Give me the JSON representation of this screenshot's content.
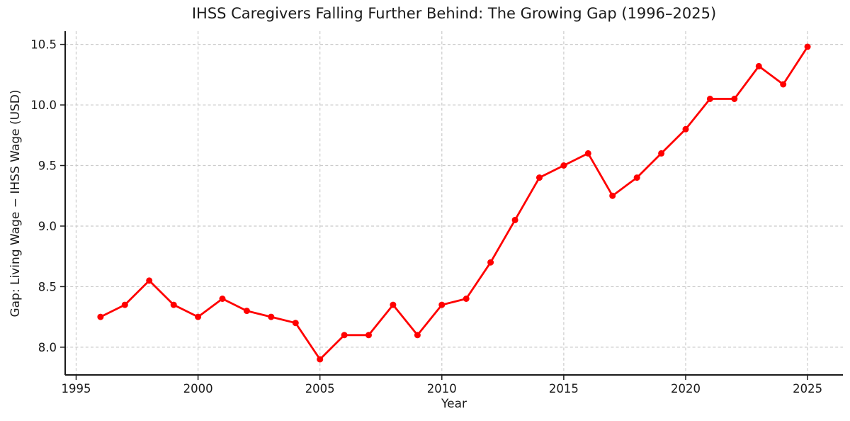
{
  "page": {
    "background_color": "#ffffff",
    "text_color": "#1a1a1a"
  },
  "chart_data": {
    "type": "line",
    "title": "IHSS Caregivers Falling Further Behind: The Growing Gap (1996–2025)",
    "xlabel": "Year",
    "ylabel": "Gap: Living Wage − IHSS Wage (USD)",
    "x": [
      1996,
      1997,
      1998,
      1999,
      2000,
      2001,
      2002,
      2003,
      2004,
      2005,
      2006,
      2007,
      2008,
      2009,
      2010,
      2011,
      2012,
      2013,
      2014,
      2015,
      2016,
      2017,
      2018,
      2019,
      2020,
      2021,
      2022,
      2023,
      2024,
      2025
    ],
    "series": [
      {
        "name": "Gap: Living Wage minus IHSS Wage",
        "color": "#ff0000",
        "values": [
          8.25,
          8.35,
          8.55,
          8.35,
          8.25,
          8.4,
          8.3,
          8.25,
          8.2,
          7.9,
          8.1,
          8.1,
          8.35,
          8.1,
          8.35,
          8.4,
          8.7,
          9.05,
          9.4,
          9.5,
          9.6,
          9.25,
          9.4,
          9.6,
          9.8,
          10.05,
          10.05,
          10.32,
          10.17,
          10.48
        ]
      }
    ],
    "xtick_values": [
      1995,
      2000,
      2005,
      2010,
      2015,
      2020,
      2025
    ],
    "xtick_labels": [
      "1995",
      "2000",
      "2005",
      "2010",
      "2015",
      "2020",
      "2025"
    ],
    "ytick_values": [
      8.0,
      8.5,
      9.0,
      9.5,
      10.0,
      10.5
    ],
    "ytick_labels": [
      "8.0",
      "8.5",
      "9.0",
      "9.5",
      "10.0",
      "10.5"
    ],
    "xlim": [
      1994.55,
      2026.45
    ],
    "ylim": [
      7.771,
      10.609
    ],
    "grid": true,
    "grid_style": "dashed",
    "grid_color": "#cbcbcb",
    "legend": false,
    "marker": "circle",
    "spine_color": "#1a1a1a",
    "tick_label_color": "#1a1a1a"
  }
}
